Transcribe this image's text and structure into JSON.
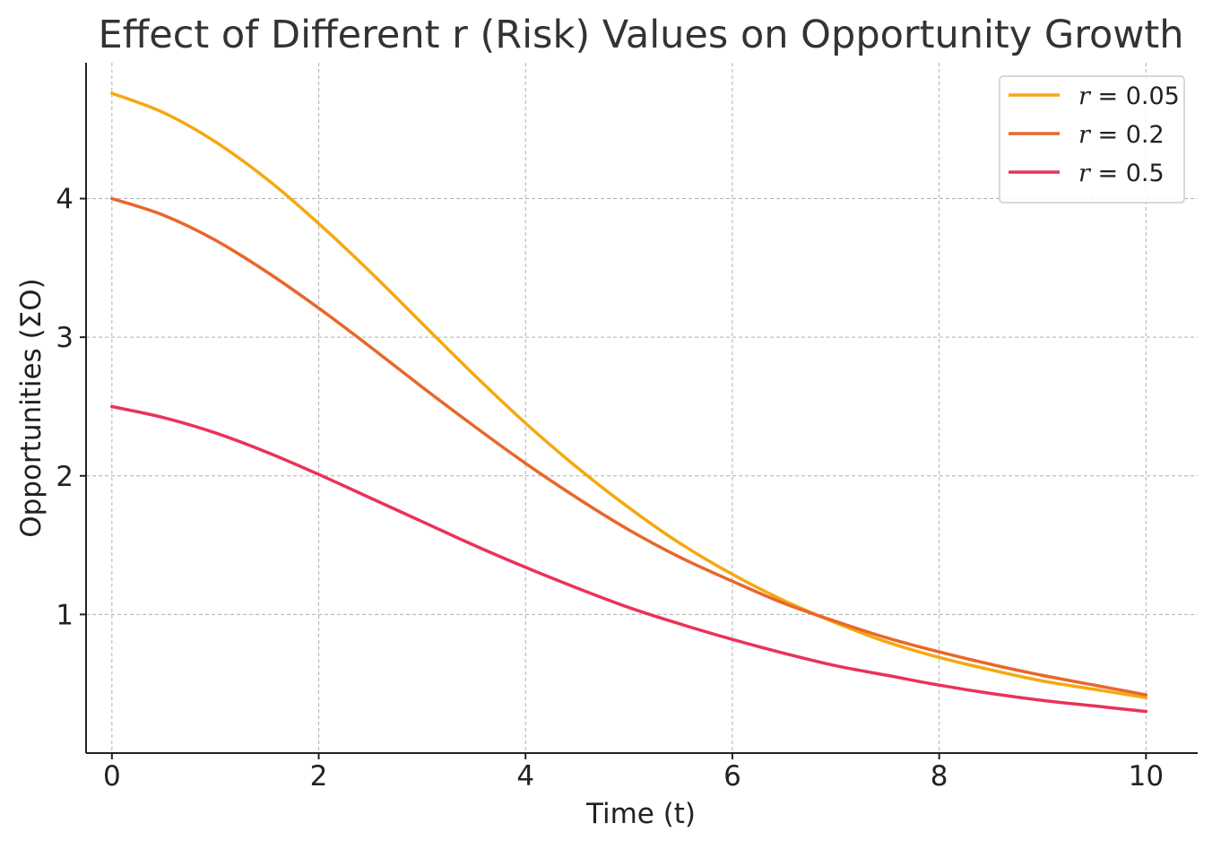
{
  "chart_data": {
    "type": "line",
    "title": "Effect of Different r (Risk) Values on Opportunity Growth",
    "xlabel": "Time (t)",
    "ylabel": "Opportunities (ΣO)",
    "xlim": [
      -0.25,
      10.5
    ],
    "ylim": [
      0.0,
      4.98
    ],
    "xticks": [
      0,
      2,
      4,
      6,
      8,
      10
    ],
    "yticks": [
      1,
      2,
      3,
      4
    ],
    "grid": true,
    "legend_position": "upper right",
    "x": [
      0,
      0.5,
      1,
      1.5,
      2,
      2.5,
      3,
      3.5,
      4,
      4.5,
      5,
      5.5,
      6,
      6.5,
      7,
      7.5,
      8,
      8.5,
      9,
      9.5,
      10
    ],
    "series": [
      {
        "name": "r = 0.05",
        "legend_var": "r",
        "legend_value": "= 0.05",
        "color": "#F5A80F",
        "values": [
          4.76,
          4.62,
          4.41,
          4.14,
          3.82,
          3.47,
          3.1,
          2.73,
          2.38,
          2.06,
          1.77,
          1.51,
          1.29,
          1.1,
          0.94,
          0.8,
          0.69,
          0.6,
          0.52,
          0.46,
          0.4
        ]
      },
      {
        "name": "r = 0.2",
        "legend_var": "r",
        "legend_value": "= 0.2",
        "color": "#E8672A",
        "values": [
          4.0,
          3.88,
          3.7,
          3.47,
          3.21,
          2.93,
          2.64,
          2.36,
          2.09,
          1.84,
          1.61,
          1.41,
          1.24,
          1.08,
          0.95,
          0.83,
          0.73,
          0.64,
          0.56,
          0.49,
          0.42
        ]
      },
      {
        "name": "r = 0.5",
        "legend_var": "r",
        "legend_value": "= 0.5",
        "color": "#EB3257",
        "values": [
          2.5,
          2.42,
          2.31,
          2.17,
          2.01,
          1.84,
          1.67,
          1.5,
          1.34,
          1.19,
          1.05,
          0.93,
          0.82,
          0.72,
          0.63,
          0.56,
          0.49,
          0.43,
          0.38,
          0.34,
          0.3
        ]
      }
    ]
  }
}
